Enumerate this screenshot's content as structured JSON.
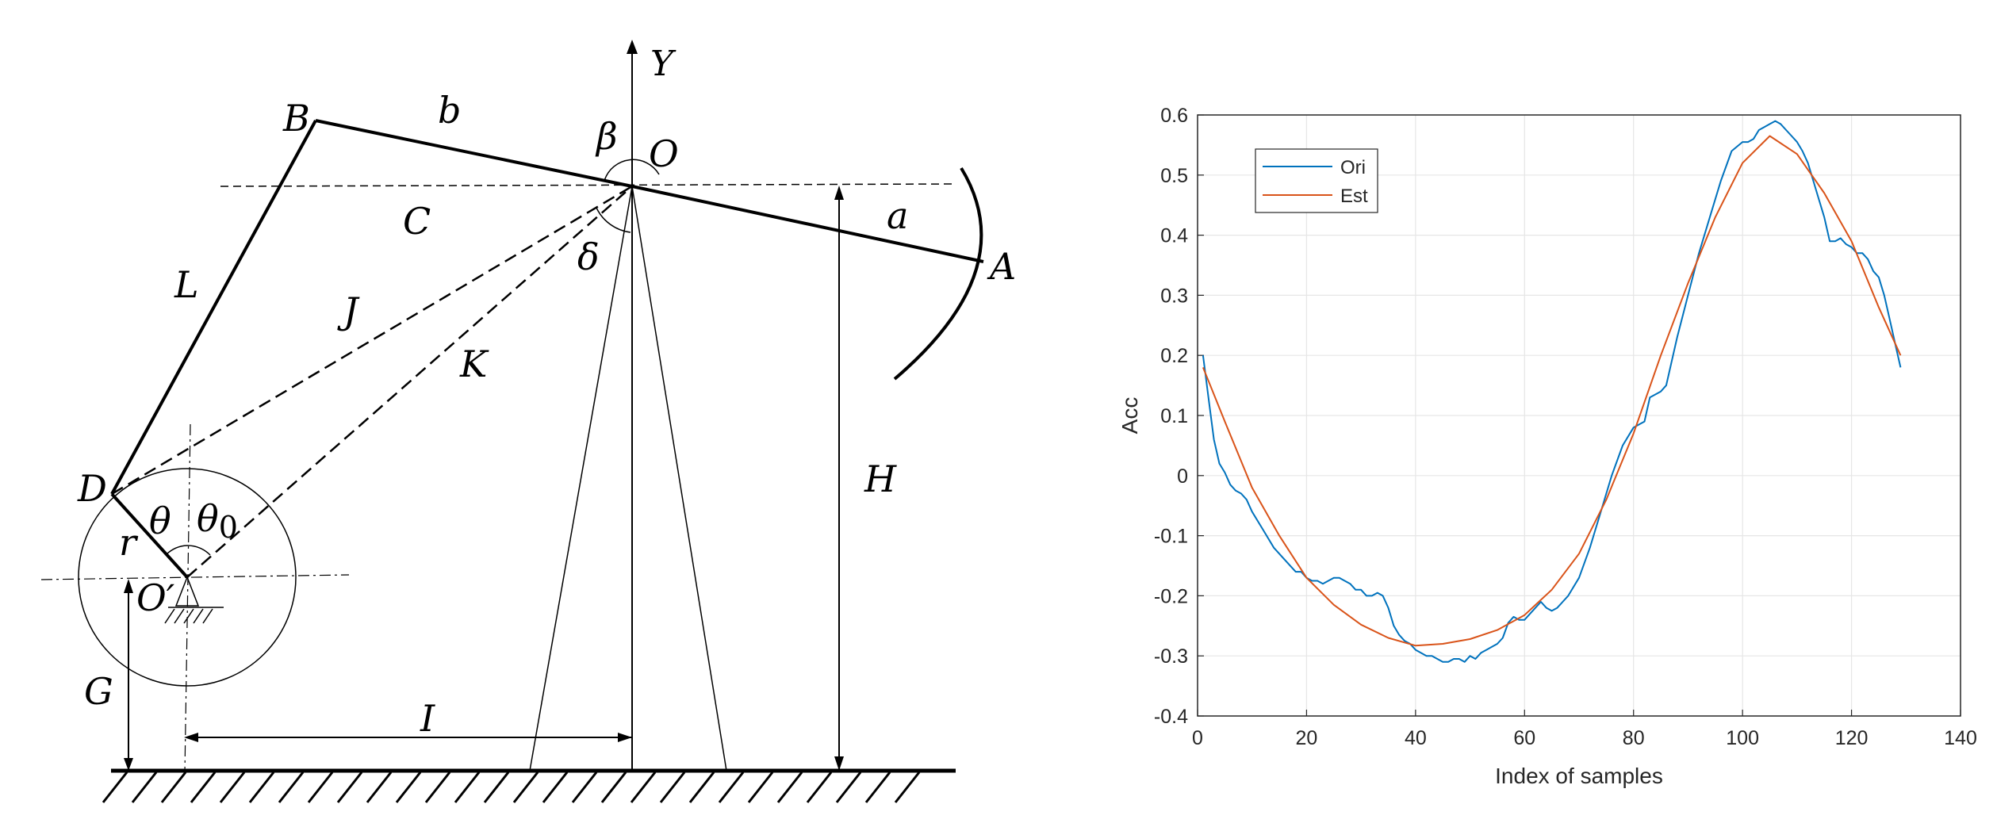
{
  "diagram": {
    "labels": {
      "Y": "Y",
      "O": "O",
      "B": "B",
      "b": "b",
      "beta": "β",
      "A": "A",
      "a": "a",
      "C": "C",
      "delta": "δ",
      "L": "L",
      "J": "J",
      "K": "K",
      "D": "D",
      "theta": "θ",
      "theta0": "θ",
      "theta0_sub": "0",
      "r": "r",
      "Oprime": "O′",
      "G": "G",
      "I": "I",
      "H": "H"
    }
  },
  "chart_data": {
    "type": "line",
    "title": "",
    "xlabel": "Index of samples",
    "ylabel": "Acc",
    "xlim": [
      0,
      140
    ],
    "ylim": [
      -0.4,
      0.6
    ],
    "xticks": [
      0,
      20,
      40,
      60,
      80,
      100,
      120,
      140
    ],
    "yticks": [
      -0.4,
      -0.3,
      -0.2,
      -0.1,
      0,
      0.1,
      0.2,
      0.3,
      0.4,
      0.5,
      0.6
    ],
    "grid": true,
    "legend_position": "top-left",
    "series": [
      {
        "name": "Ori",
        "color": "#0072BD",
        "x": [
          1,
          2,
          3,
          4,
          5,
          6,
          7,
          8,
          9,
          10,
          12,
          14,
          16,
          18,
          19,
          20,
          21,
          22,
          23,
          24,
          25,
          26,
          27,
          28,
          29,
          30,
          31,
          32,
          33,
          34,
          35,
          36,
          37,
          38,
          39,
          40,
          41,
          42,
          43,
          44,
          45,
          46,
          47,
          48,
          49,
          50,
          51,
          52,
          53,
          54,
          55,
          56,
          57,
          58,
          59,
          60,
          61,
          62,
          63,
          64,
          65,
          66,
          67,
          68,
          70,
          72,
          74,
          76,
          78,
          80,
          81,
          82,
          83,
          84,
          85,
          86,
          88,
          90,
          92,
          94,
          96,
          98,
          100,
          101,
          102,
          103,
          104,
          105,
          106,
          107,
          108,
          109,
          110,
          111,
          112,
          113,
          114,
          115,
          116,
          117,
          118,
          119,
          120,
          121,
          122,
          123,
          124,
          125,
          126,
          127,
          128,
          129
        ],
        "y": [
          0.2,
          0.13,
          0.06,
          0.02,
          0.005,
          -0.015,
          -0.025,
          -0.03,
          -0.04,
          -0.06,
          -0.09,
          -0.12,
          -0.14,
          -0.16,
          -0.16,
          -0.17,
          -0.175,
          -0.175,
          -0.18,
          -0.175,
          -0.17,
          -0.17,
          -0.175,
          -0.18,
          -0.19,
          -0.19,
          -0.2,
          -0.2,
          -0.195,
          -0.2,
          -0.22,
          -0.25,
          -0.265,
          -0.275,
          -0.28,
          -0.29,
          -0.295,
          -0.3,
          -0.3,
          -0.305,
          -0.31,
          -0.31,
          -0.305,
          -0.305,
          -0.31,
          -0.3,
          -0.305,
          -0.295,
          -0.29,
          -0.285,
          -0.28,
          -0.27,
          -0.245,
          -0.235,
          -0.24,
          -0.24,
          -0.23,
          -0.22,
          -0.21,
          -0.22,
          -0.225,
          -0.22,
          -0.21,
          -0.2,
          -0.17,
          -0.12,
          -0.06,
          0.0,
          0.05,
          0.08,
          0.085,
          0.09,
          0.13,
          0.135,
          0.14,
          0.15,
          0.23,
          0.3,
          0.37,
          0.43,
          0.49,
          0.54,
          0.555,
          0.555,
          0.56,
          0.575,
          0.58,
          0.585,
          0.59,
          0.585,
          0.575,
          0.565,
          0.555,
          0.54,
          0.52,
          0.49,
          0.46,
          0.43,
          0.39,
          0.39,
          0.395,
          0.385,
          0.38,
          0.37,
          0.37,
          0.36,
          0.34,
          0.33,
          0.3,
          0.26,
          0.22,
          0.18
        ]
      },
      {
        "name": "Est",
        "color": "#D95319",
        "x": [
          1,
          5,
          10,
          15,
          20,
          25,
          30,
          35,
          40,
          45,
          50,
          55,
          60,
          65,
          70,
          75,
          80,
          85,
          90,
          95,
          100,
          105,
          110,
          115,
          120,
          125,
          129
        ],
        "y": [
          0.18,
          0.09,
          -0.02,
          -0.1,
          -0.17,
          -0.215,
          -0.248,
          -0.27,
          -0.283,
          -0.28,
          -0.272,
          -0.257,
          -0.232,
          -0.19,
          -0.13,
          -0.04,
          0.07,
          0.2,
          0.32,
          0.43,
          0.52,
          0.565,
          0.535,
          0.47,
          0.39,
          0.28,
          0.2
        ]
      }
    ]
  }
}
